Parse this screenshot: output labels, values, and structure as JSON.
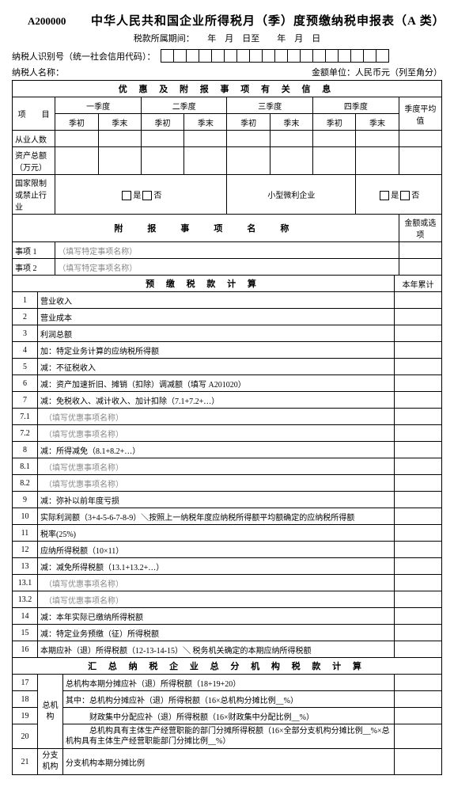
{
  "form_code": "A200000",
  "title": "中华人民共和国企业所得税月（季）度预缴纳税申报表（A 类）",
  "period_label": "税款所属期间：　　年　月　日至　　年　月　日",
  "taxpayer_id_label": "纳税人识别号（统一社会信用代码）：",
  "taxpayer_name_label": "纳税人名称：",
  "unit_label": "金额单位：人民币元（列至角分）",
  "section1": {
    "header": "优 惠 及 附 报 事 项 有 关 信 息",
    "col_item": "项　　目",
    "q1": "一季度",
    "q2": "二季度",
    "q3": "三季度",
    "q4": "四季度",
    "avg": "季度平均值",
    "qstart": "季初",
    "qend": "季末",
    "row1": "从业人数",
    "row2": "资产总额（万元）",
    "row3": "国家限制或禁止行业",
    "yes_no": "□是□否",
    "small_ent": "小型微利企业",
    "attach_header": "附　报　事　项　名　称",
    "amount_header": "金额或选项",
    "item1": "事项 1",
    "item2": "事项 2",
    "hint": "（填写特定事项名称）"
  },
  "section2": {
    "header": "预 缴 税 款 计 算",
    "yearcol": "本年累计",
    "rows": [
      {
        "n": "1",
        "t": "营业收入"
      },
      {
        "n": "2",
        "t": "营业成本"
      },
      {
        "n": "3",
        "t": "利润总额"
      },
      {
        "n": "4",
        "t": "加：特定业务计算的应纳税所得额"
      },
      {
        "n": "5",
        "t": "减：不征税收入"
      },
      {
        "n": "6",
        "t": "减：资产加速折旧、摊销（扣除）调减额（填写 A201020）"
      },
      {
        "n": "7",
        "t": "减：免税收入、减计收入、加计扣除（7.1+7.2+…）"
      },
      {
        "n": "7.1",
        "t": "　（填写优惠事项名称）",
        "ph": true
      },
      {
        "n": "7.2",
        "t": "　（填写优惠事项名称）",
        "ph": true
      },
      {
        "n": "8",
        "t": "减：所得减免（8.1+8.2+…）"
      },
      {
        "n": "8.1",
        "t": "　（填写优惠事项名称）",
        "ph": true
      },
      {
        "n": "8.2",
        "t": "　（填写优惠事项名称）",
        "ph": true
      },
      {
        "n": "9",
        "t": "减：弥补以前年度亏损"
      },
      {
        "n": "10",
        "t": "实际利润额（3+4-5-6-7-8-9）＼按照上一纳税年度应纳税所得额平均额确定的应纳税所得额"
      },
      {
        "n": "11",
        "t": "税率(25%)"
      },
      {
        "n": "12",
        "t": "应纳所得税额（10×11）"
      },
      {
        "n": "13",
        "t": "减：减免所得税额（13.1+13.2+…）"
      },
      {
        "n": "13.1",
        "t": "　（填写优惠事项名称）",
        "ph": true
      },
      {
        "n": "13.2",
        "t": "　（填写优惠事项名称）",
        "ph": true
      },
      {
        "n": "14",
        "t": "减：本年实际已缴纳所得税额"
      },
      {
        "n": "15",
        "t": "减：特定业务预缴（征）所得税额"
      },
      {
        "n": "16",
        "t": "本期应补（退）所得税额（12-13-14-15）＼ 税务机关确定的本期应纳所得税额"
      }
    ]
  },
  "section3": {
    "header": "汇 总 纳 税 企 业 总 分 机 构 税 款 计 算",
    "hq": "总机\n构",
    "branch": "分支\n机构",
    "rows": [
      {
        "n": "17",
        "t": "总机构本期分摊应补（退）所得税额（18+19+20）"
      },
      {
        "n": "18",
        "t": "其中：总机构分摊应补（退）所得税额（16×总机构分摊比例__%）"
      },
      {
        "n": "19",
        "t": "　　　财政集中分配应补（退）所得税额（16×财政集中分配比例__%）"
      },
      {
        "n": "20",
        "t": "　　　总机构具有主体生产经营职能的部门分摊所得税额（16×全部分支机构分摊比例__%×总机构具有主体生产经营职能部门分摊比例__%）"
      },
      {
        "n": "21",
        "t": "分支机构本期分摊比例"
      }
    ]
  }
}
